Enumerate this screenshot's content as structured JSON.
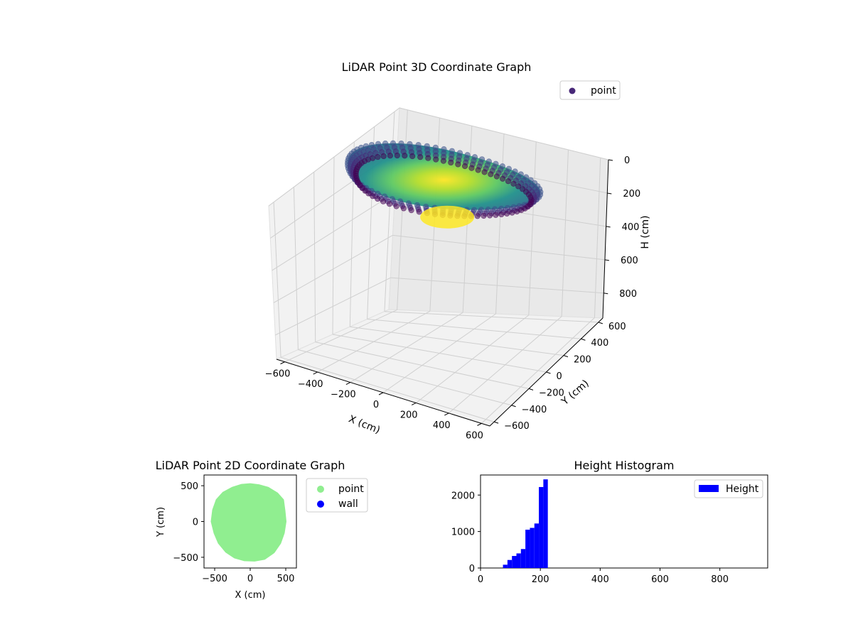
{
  "chart_data": [
    {
      "type": "scatter",
      "projection": "3d",
      "title": "LiDAR Point 3D Coordinate Graph",
      "xlabel": "X (cm)",
      "ylabel": "Y (cm)",
      "zlabel": "H (cm)",
      "xlim": [
        -650,
        650
      ],
      "ylim": [
        -650,
        650
      ],
      "zlim": [
        0,
        950
      ],
      "z_inverted": true,
      "x_ticks": [
        "−600",
        "−400",
        "−200",
        "0",
        "200",
        "400",
        "600"
      ],
      "y_ticks": [
        "−600",
        "−400",
        "−200",
        "0",
        "200",
        "400",
        "600"
      ],
      "z_ticks": [
        "0",
        "200",
        "400",
        "600",
        "800"
      ],
      "grid": true,
      "colormap": "viridis",
      "legend": {
        "placement": "top-right",
        "entries": [
          {
            "label": "point",
            "color": "#482878"
          }
        ]
      },
      "rim_radius_cm": 520,
      "height_range_cm": [
        75,
        225
      ]
    },
    {
      "type": "scatter",
      "title": "LiDAR Point 2D Coordinate Graph",
      "xlabel": "X (cm)",
      "ylabel": "Y (cm)",
      "xlim": [
        -650,
        650
      ],
      "ylim": [
        -650,
        650
      ],
      "x_ticks": [
        "−500",
        "0",
        "500"
      ],
      "y_ticks": [
        "−500",
        "0",
        "500"
      ],
      "legend": {
        "placement": "outside-right",
        "entries": [
          {
            "label": "point",
            "color": "#90ee90"
          },
          {
            "label": "wall",
            "color": "#0000ff"
          }
        ]
      },
      "series": [
        {
          "name": "point",
          "color": "#90ee90",
          "outline": [
            [
              0,
              520
            ],
            [
              120,
              505
            ],
            [
              250,
              470
            ],
            [
              380,
              390
            ],
            [
              460,
              300
            ],
            [
              480,
              150
            ],
            [
              495,
              0
            ],
            [
              470,
              -160
            ],
            [
              420,
              -300
            ],
            [
              330,
              -430
            ],
            [
              200,
              -520
            ],
            [
              60,
              -545
            ],
            [
              -80,
              -540
            ],
            [
              -220,
              -500
            ],
            [
              -340,
              -420
            ],
            [
              -440,
              -300
            ],
            [
              -500,
              -160
            ],
            [
              -540,
              0
            ],
            [
              -520,
              160
            ],
            [
              -470,
              300
            ],
            [
              -380,
              400
            ],
            [
              -250,
              470
            ],
            [
              -120,
              510
            ]
          ]
        },
        {
          "name": "wall",
          "color": "#0000ff",
          "values": []
        }
      ]
    },
    {
      "type": "bar",
      "title": "Height Histogram",
      "xlabel": "",
      "ylabel": "",
      "xlim": [
        0,
        960
      ],
      "ylim": [
        0,
        2550
      ],
      "x_ticks": [
        "0",
        "200",
        "400",
        "600",
        "800"
      ],
      "y_ticks": [
        "0",
        "1000",
        "2000"
      ],
      "legend": {
        "placement": "top-right",
        "entries": [
          {
            "label": "Height",
            "color": "#0000ff"
          }
        ]
      },
      "bin_width": 15,
      "bins": [
        {
          "x": 75,
          "value": 90
        },
        {
          "x": 90,
          "value": 220
        },
        {
          "x": 105,
          "value": 330
        },
        {
          "x": 120,
          "value": 400
        },
        {
          "x": 135,
          "value": 520
        },
        {
          "x": 150,
          "value": 1050
        },
        {
          "x": 165,
          "value": 1100
        },
        {
          "x": 180,
          "value": 1220
        },
        {
          "x": 195,
          "value": 2220
        },
        {
          "x": 210,
          "value": 2430
        }
      ]
    }
  ]
}
